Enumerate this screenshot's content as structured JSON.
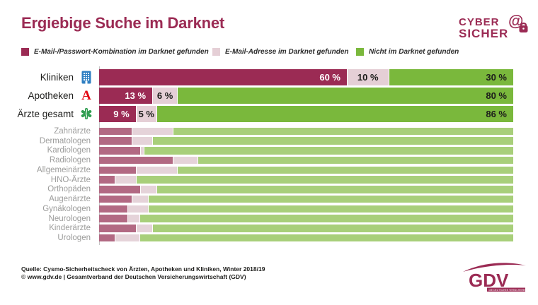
{
  "title": "Ergiebige Suche im Darknet",
  "colors": {
    "berry": "#9b2b54",
    "pink": "#e5cfd6",
    "green": "#7ab83c",
    "sub_red": "#b26983",
    "sub_pink": "#e5d3d9",
    "sub_green": "#a8cf7a",
    "text_dark": "#1d1d1b",
    "label_gray": "#9c9c9b",
    "hospital_blue": "#2e7fc2",
    "apotheke_red": "#e30613",
    "doctor_green": "#2f9e50",
    "white": "#ffffff"
  },
  "legend": [
    {
      "label": "E-Mail-/Passwort-Kombination im Darknet gefunden",
      "color": "berry"
    },
    {
      "label": "E-Mail-Adresse im Darknet gefunden",
      "color": "pink"
    },
    {
      "label": "Nicht im Darknet gefunden",
      "color": "green"
    }
  ],
  "chart_data": {
    "type": "bar",
    "orientation": "horizontal-stacked",
    "unit": "%",
    "x_range": [
      0,
      100
    ],
    "series": [
      "E-Mail-/Passwort-Kombination im Darknet gefunden",
      "E-Mail-Adresse im Darknet gefunden",
      "Nicht im Darknet gefunden"
    ],
    "main": [
      {
        "label": "Kliniken",
        "icon": "hospital-icon",
        "values": [
          60,
          10,
          30
        ],
        "value_labels": [
          "60 %",
          "10 %",
          "30 %"
        ]
      },
      {
        "label": "Apotheken",
        "icon": "apotheke-a-icon",
        "values": [
          13,
          6,
          80
        ],
        "value_labels": [
          "13 %",
          "6 %",
          "80 %"
        ]
      },
      {
        "label": "Ärzte gesamt",
        "icon": "staff-of-life-icon",
        "values": [
          9,
          5,
          86
        ],
        "value_labels": [
          "9 %",
          "5 %",
          "86 %"
        ]
      }
    ],
    "sub": [
      {
        "label": "Zahnärzte",
        "values": [
          8,
          10,
          82
        ]
      },
      {
        "label": "Dermatologen",
        "values": [
          8,
          5,
          87
        ]
      },
      {
        "label": "Kardiologen",
        "values": [
          10,
          1,
          89
        ]
      },
      {
        "label": "Radiologen",
        "values": [
          18,
          6,
          76
        ]
      },
      {
        "label": "Allgemeinärzte",
        "values": [
          9,
          10,
          81
        ]
      },
      {
        "label": "HNO-Ärzte",
        "values": [
          4,
          5,
          91
        ]
      },
      {
        "label": "Orthopäden",
        "values": [
          10,
          4,
          86
        ]
      },
      {
        "label": "Augenärzte",
        "values": [
          8,
          4,
          88
        ]
      },
      {
        "label": "Gynäkologen",
        "values": [
          7,
          5,
          88
        ]
      },
      {
        "label": "Neurologen",
        "values": [
          7,
          3,
          90
        ]
      },
      {
        "label": "Kinderärzte",
        "values": [
          9,
          4,
          87
        ]
      },
      {
        "label": "Urologen",
        "values": [
          4,
          6,
          90
        ]
      }
    ]
  },
  "footer": {
    "line1": "Quelle: Cysmo-Sicherheitscheck von Ärzten, Apotheken und Kliniken, Winter 2018/19",
    "line2": "© www.gdv.de | Gesamtverband der Deutschen Versicherungswirtschaft (GDV)"
  },
  "logos": {
    "cyber": {
      "line1": "CYBER",
      "line2": "SICHER"
    },
    "gdv": {
      "text": "GDV",
      "tagline": "DIE DEUTSCHEN VERSICHERER"
    }
  }
}
